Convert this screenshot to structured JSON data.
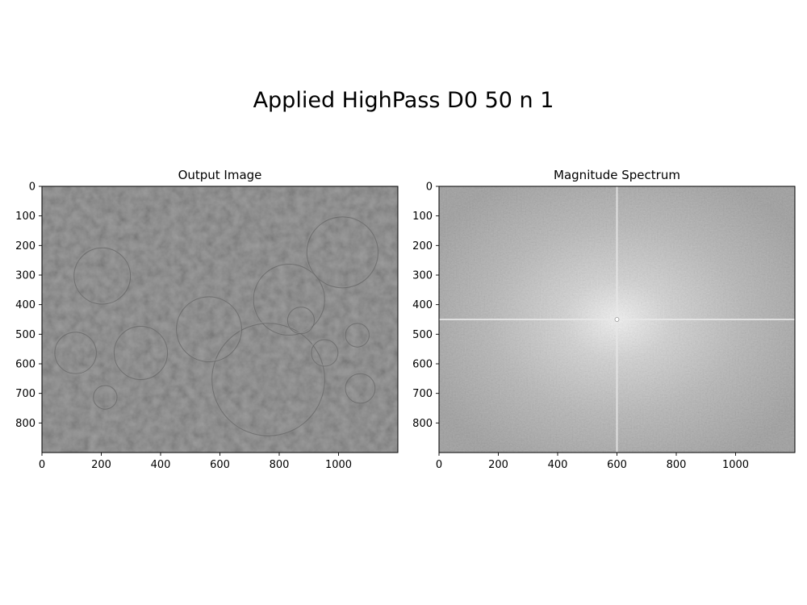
{
  "figure": {
    "suptitle": "Applied HighPass D0 50 n 1"
  },
  "chart_data": [
    {
      "type": "heatmap",
      "title": "Output Image",
      "xlabel": "",
      "ylabel": "",
      "image_width": 1200,
      "image_height": 900,
      "xlim": [
        0,
        1200
      ],
      "ylim": [
        900,
        0
      ],
      "xticks": [
        0,
        200,
        400,
        600,
        800,
        1000
      ],
      "yticks": [
        0,
        100,
        200,
        300,
        400,
        500,
        600,
        700,
        800
      ],
      "colormap": "gray",
      "base_color": "#7a7a7a",
      "content": "high-pass filtered edge image"
    },
    {
      "type": "heatmap",
      "title": "Magnitude Spectrum",
      "xlabel": "",
      "ylabel": "",
      "image_width": 1200,
      "image_height": 900,
      "xlim": [
        0,
        1200
      ],
      "ylim": [
        900,
        0
      ],
      "xticks": [
        0,
        200,
        400,
        600,
        800,
        1000
      ],
      "yticks": [
        0,
        100,
        200,
        300,
        400,
        500,
        600,
        700,
        800
      ],
      "colormap": "gray",
      "center": [
        600,
        450
      ],
      "content": "log magnitude of 2D FFT, bright center and cross axes"
    }
  ]
}
